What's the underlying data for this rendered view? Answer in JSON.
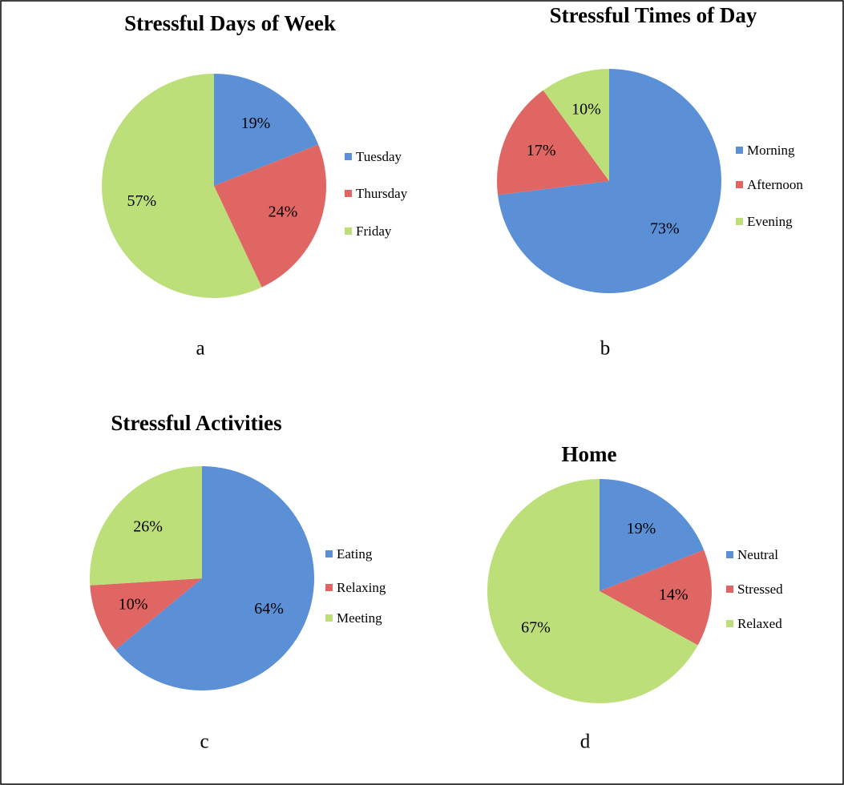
{
  "chart_data": [
    {
      "type": "pie",
      "title": "Stressful Days of Week",
      "categories": [
        "Tuesday",
        "Thursday",
        "Friday"
      ],
      "values": [
        19,
        24,
        57
      ],
      "value_labels": [
        "19%",
        "24%",
        "57%"
      ],
      "colors": [
        "#5b8fd6",
        "#e06664",
        "#bddf7a"
      ],
      "caption": "a"
    },
    {
      "type": "pie",
      "title": "Stressful Times of Day",
      "categories": [
        "Morning",
        "Afternoon",
        "Evening"
      ],
      "values": [
        73,
        17,
        10
      ],
      "value_labels": [
        "73%",
        "17%",
        "10%"
      ],
      "colors": [
        "#5b8fd6",
        "#e06664",
        "#bddf7a"
      ],
      "caption": "b"
    },
    {
      "type": "pie",
      "title": "Stressful Activities",
      "categories": [
        "Eating",
        "Relaxing",
        "Meeting"
      ],
      "values": [
        64,
        10,
        26
      ],
      "value_labels": [
        "64%",
        "10%",
        "26%"
      ],
      "colors": [
        "#5b8fd6",
        "#e06664",
        "#bddf7a"
      ],
      "caption": "c"
    },
    {
      "type": "pie",
      "title": "Home",
      "categories": [
        "Neutral",
        "Stressed",
        "Relaxed"
      ],
      "values": [
        19,
        14,
        67
      ],
      "value_labels": [
        "19%",
        "14%",
        "67%"
      ],
      "colors": [
        "#5b8fd6",
        "#e06664",
        "#bddf7a"
      ],
      "caption": "d"
    }
  ]
}
